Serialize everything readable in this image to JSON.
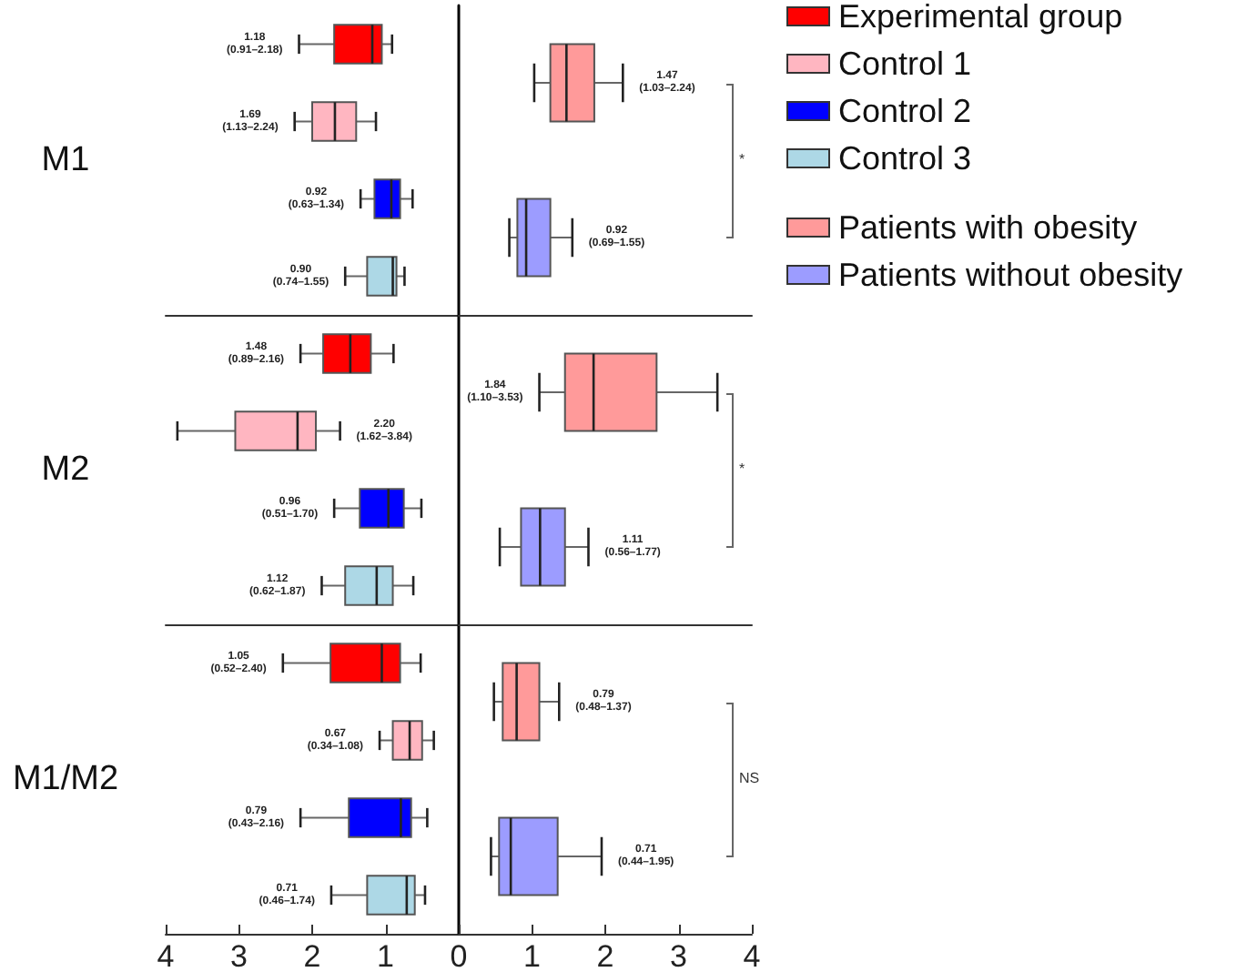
{
  "chart_data": [
    {
      "type": "box",
      "orientation": "horizontal",
      "categories": [
        "M1",
        "M2",
        "M1/M2"
      ],
      "xlim": [
        4,
        0
      ],
      "xticks": [
        4,
        3,
        2,
        1,
        0
      ],
      "legend": "top right",
      "series": [
        {
          "name": "Experimental group",
          "color": "#ff0000",
          "boxes": [
            {
              "low": 0.91,
              "q1": 1.05,
              "median": 1.18,
              "q3": 1.7,
              "high": 2.18
            },
            {
              "low": 0.89,
              "q1": 1.2,
              "median": 1.48,
              "q3": 1.85,
              "high": 2.16
            },
            {
              "low": 0.52,
              "q1": 0.8,
              "median": 1.05,
              "q3": 1.75,
              "high": 2.4
            }
          ],
          "value_labels": [
            "1.18 (0.91–2.18)",
            "1.48 (0.89–2.16)",
            "1.05 (0.52–2.40)"
          ]
        },
        {
          "name": "Control 1",
          "color": "#ffb6c1",
          "boxes": [
            {
              "low": 1.13,
              "q1": 1.4,
              "median": 1.69,
              "q3": 2.0,
              "high": 2.24
            },
            {
              "low": 1.62,
              "q1": 1.95,
              "median": 2.2,
              "q3": 3.05,
              "high": 3.84
            },
            {
              "low": 0.34,
              "q1": 0.5,
              "median": 0.67,
              "q3": 0.9,
              "high": 1.08
            }
          ],
          "value_labels": [
            "1.69 (1.13–2.24)",
            "2.20 (1.62–3.84)",
            "0.67 (0.34–1.08)"
          ]
        },
        {
          "name": "Control 2",
          "color": "#0000ff",
          "boxes": [
            {
              "low": 0.63,
              "q1": 0.8,
              "median": 0.92,
              "q3": 1.15,
              "high": 1.34
            },
            {
              "low": 0.51,
              "q1": 0.75,
              "median": 0.96,
              "q3": 1.35,
              "high": 1.7
            },
            {
              "low": 0.43,
              "q1": 0.65,
              "median": 0.79,
              "q3": 1.5,
              "high": 2.16
            }
          ],
          "value_labels": [
            "0.92 (0.63–1.34)",
            "0.96 (0.51–1.70)",
            "0.79 (0.43–2.16)"
          ]
        },
        {
          "name": "Control 3",
          "color": "#add8e6",
          "boxes": [
            {
              "low": 0.74,
              "q1": 0.85,
              "median": 0.9,
              "q3": 1.25,
              "high": 1.55
            },
            {
              "low": 0.62,
              "q1": 0.9,
              "median": 1.12,
              "q3": 1.55,
              "high": 1.87
            },
            {
              "low": 0.46,
              "q1": 0.6,
              "median": 0.71,
              "q3": 1.25,
              "high": 1.74
            }
          ],
          "value_labels": [
            "0.90 (0.74–1.55)",
            "1.12 (0.62–1.87)",
            "0.71 (0.46–1.74)"
          ]
        }
      ]
    },
    {
      "type": "box",
      "orientation": "horizontal",
      "categories": [
        null,
        null,
        null
      ],
      "xlim": [
        0,
        4
      ],
      "xticks": [
        {
          "value": 0,
          "label": null
        },
        1,
        2,
        3,
        4
      ],
      "tick_labels": "x",
      "legend": "top right",
      "annotations": [
        "*",
        "*",
        "NS"
      ],
      "series": [
        {
          "name": "Patients with obesity",
          "color": "#ff9a9a",
          "boxes": [
            {
              "low": 1.03,
              "q1": 1.25,
              "median": 1.47,
              "q3": 1.85,
              "high": 2.24
            },
            {
              "low": 1.1,
              "q1": 1.45,
              "median": 1.84,
              "q3": 2.7,
              "high": 3.53
            },
            {
              "low": 0.48,
              "q1": 0.6,
              "median": 0.79,
              "q3": 1.1,
              "high": 1.37
            }
          ],
          "value_labels": [
            "1.47 (1.03–2.24)",
            "1.84 (1.10–3.53)",
            "0.79 (0.48–1.37)"
          ]
        },
        {
          "name": "Patients without obesity",
          "color": "#9c9cff",
          "boxes": [
            {
              "low": 0.69,
              "q1": 0.8,
              "median": 0.92,
              "q3": 1.25,
              "high": 1.55
            },
            {
              "low": 0.56,
              "q1": 0.85,
              "median": 1.11,
              "q3": 1.45,
              "high": 1.77
            },
            {
              "low": 0.44,
              "q1": 0.55,
              "median": 0.71,
              "q3": 1.35,
              "high": 1.95
            }
          ],
          "value_labels": [
            "0.92 (0.69–1.55)",
            "1.11 (0.56–1.77)",
            "0.71 (0.44–1.95)"
          ]
        }
      ]
    }
  ]
}
